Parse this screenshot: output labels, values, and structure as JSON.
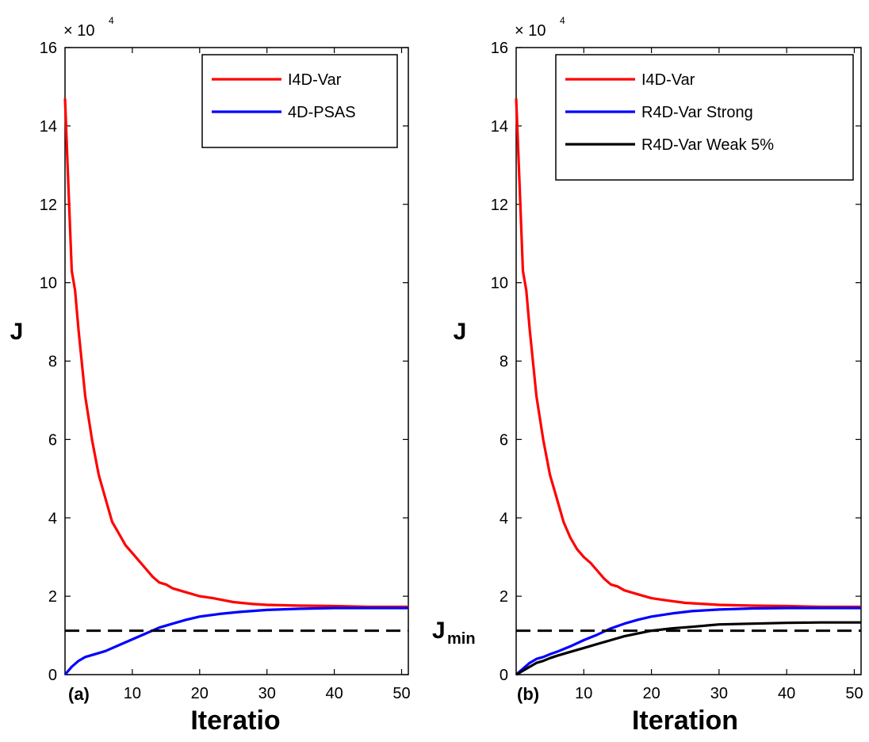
{
  "chart_data": [
    {
      "type": "line",
      "panel_label": "(a)",
      "xlabel": "Iteratio",
      "ylabel": "J",
      "y_exponent_label": "× 10",
      "y_exponent_power": "4",
      "xlim": [
        0,
        51
      ],
      "ylim": [
        0,
        16
      ],
      "x_ticks": [
        10,
        20,
        30,
        40,
        50
      ],
      "y_ticks": [
        0,
        2,
        4,
        6,
        8,
        10,
        12,
        14,
        16
      ],
      "legend_position": "top-right",
      "grid": false,
      "series": [
        {
          "name": "I4D-Var",
          "color": "#ff0000",
          "x": [
            0,
            0.5,
            1,
            1.5,
            2,
            3,
            4,
            5,
            6,
            7,
            8,
            9,
            10,
            11,
            12,
            13,
            14,
            15,
            16,
            18,
            20,
            22,
            25,
            28,
            30,
            35,
            40,
            45,
            51
          ],
          "y": [
            14.7,
            12.5,
            10.3,
            9.8,
            8.8,
            7.1,
            6.0,
            5.1,
            4.5,
            3.9,
            3.6,
            3.3,
            3.1,
            2.9,
            2.7,
            2.5,
            2.35,
            2.3,
            2.2,
            2.1,
            2.0,
            1.95,
            1.85,
            1.8,
            1.78,
            1.76,
            1.75,
            1.73,
            1.73
          ]
        },
        {
          "name": "4D-PSAS",
          "color": "#0000ff",
          "x": [
            0,
            1,
            2,
            3,
            4,
            5,
            6,
            8,
            10,
            12,
            14,
            16,
            18,
            20,
            23,
            26,
            30,
            35,
            40,
            45,
            51
          ],
          "y": [
            0,
            0.2,
            0.35,
            0.45,
            0.5,
            0.55,
            0.6,
            0.75,
            0.9,
            1.05,
            1.2,
            1.3,
            1.4,
            1.48,
            1.55,
            1.6,
            1.65,
            1.68,
            1.7,
            1.7,
            1.7
          ]
        },
        {
          "color": "#000000",
          "dashed": true,
          "x": [
            0,
            51
          ],
          "y": [
            1.12,
            1.12
          ]
        }
      ]
    },
    {
      "type": "line",
      "panel_label": "(b)",
      "xlabel": "Iteration",
      "ylabel": "J",
      "y_exponent_label": "× 10",
      "y_exponent_power": "4",
      "reference_label_main": "J",
      "reference_label_sub": "min",
      "xlim": [
        0,
        51
      ],
      "ylim": [
        0,
        16
      ],
      "x_ticks": [
        10,
        20,
        30,
        40,
        50
      ],
      "y_ticks": [
        0,
        2,
        4,
        6,
        8,
        10,
        12,
        14,
        16
      ],
      "legend_position": "top-right",
      "grid": false,
      "series": [
        {
          "name": "I4D-Var",
          "color": "#ff0000",
          "x": [
            0,
            0.5,
            1,
            1.5,
            2,
            3,
            4,
            5,
            6,
            7,
            8,
            9,
            10,
            11,
            12,
            13,
            14,
            15,
            16,
            18,
            20,
            22,
            25,
            28,
            30,
            35,
            40,
            45,
            51
          ],
          "y": [
            14.7,
            12.5,
            10.3,
            9.8,
            8.8,
            7.1,
            6.0,
            5.1,
            4.5,
            3.9,
            3.5,
            3.2,
            3.0,
            2.85,
            2.65,
            2.45,
            2.3,
            2.25,
            2.15,
            2.05,
            1.95,
            1.9,
            1.83,
            1.8,
            1.78,
            1.76,
            1.75,
            1.73,
            1.73
          ]
        },
        {
          "name": "R4D-Var Strong",
          "color": "#0000ff",
          "x": [
            0,
            1,
            2,
            3,
            4,
            5,
            6,
            8,
            10,
            12,
            14,
            16,
            18,
            20,
            23,
            26,
            30,
            35,
            40,
            45,
            51
          ],
          "y": [
            0,
            0.15,
            0.3,
            0.4,
            0.45,
            0.52,
            0.58,
            0.72,
            0.88,
            1.02,
            1.18,
            1.3,
            1.4,
            1.48,
            1.56,
            1.62,
            1.66,
            1.69,
            1.7,
            1.7,
            1.7
          ]
        },
        {
          "name": "R4D-Var Weak 5%",
          "color": "#000000",
          "x": [
            0,
            1,
            2,
            3,
            4,
            5,
            6,
            8,
            10,
            12,
            14,
            16,
            18,
            20,
            23,
            26,
            30,
            35,
            40,
            45,
            51
          ],
          "y": [
            0,
            0.1,
            0.2,
            0.3,
            0.35,
            0.42,
            0.48,
            0.58,
            0.68,
            0.78,
            0.88,
            0.98,
            1.05,
            1.12,
            1.18,
            1.22,
            1.28,
            1.3,
            1.32,
            1.33,
            1.33
          ]
        },
        {
          "color": "#000000",
          "dashed": true,
          "x": [
            0,
            51
          ],
          "y": [
            1.12,
            1.12
          ]
        }
      ]
    }
  ]
}
